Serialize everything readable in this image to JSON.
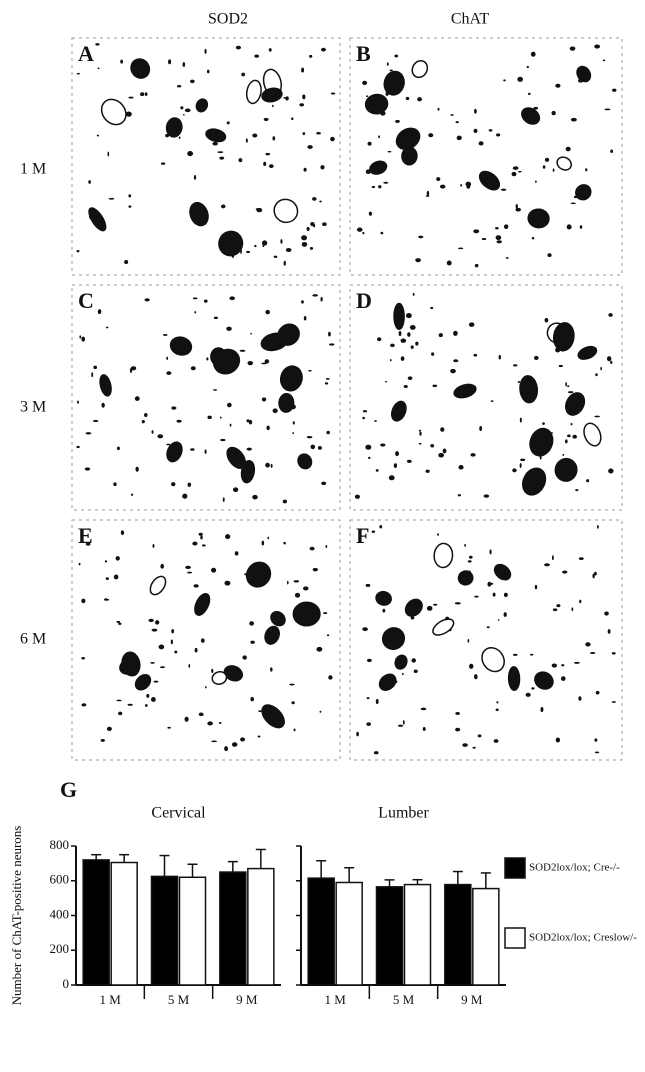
{
  "columns": [
    "SOD2",
    "ChAT"
  ],
  "rows": [
    "1 M",
    "3 M",
    "6 M"
  ],
  "panels": [
    "A",
    "B",
    "C",
    "D",
    "E",
    "F"
  ],
  "panel_g": "G",
  "chart_data": [
    {
      "type": "bar",
      "title": "Cervical",
      "y_label": "Number of ChAT-positive neurons",
      "categories": [
        "1 M",
        "5 M",
        "9 M"
      ],
      "series": [
        {
          "name": "SOD2lox/lox; Cre-/-",
          "color": "#000000",
          "values": [
            720,
            625,
            650
          ],
          "errors": [
            30,
            120,
            60
          ]
        },
        {
          "name": "SOD2lox/lox; Creslow/-",
          "color": "#ffffff",
          "values": [
            705,
            620,
            670
          ],
          "errors": [
            45,
            75,
            110
          ]
        }
      ],
      "ylim": [
        0,
        800
      ],
      "yticks": [
        0,
        200,
        400,
        600,
        800
      ]
    },
    {
      "type": "bar",
      "title": "Lumber",
      "categories": [
        "1 M",
        "5 M",
        "9 M"
      ],
      "series": [
        {
          "color": "#000000",
          "values": [
            615,
            565,
            578
          ],
          "errors": [
            100,
            40,
            75
          ]
        },
        {
          "color": "#ffffff",
          "values": [
            590,
            578,
            555
          ],
          "errors": [
            85,
            28,
            90
          ]
        }
      ],
      "ylim": [
        0,
        800
      ],
      "yticks": [
        0,
        200,
        400,
        600,
        800
      ]
    }
  ]
}
